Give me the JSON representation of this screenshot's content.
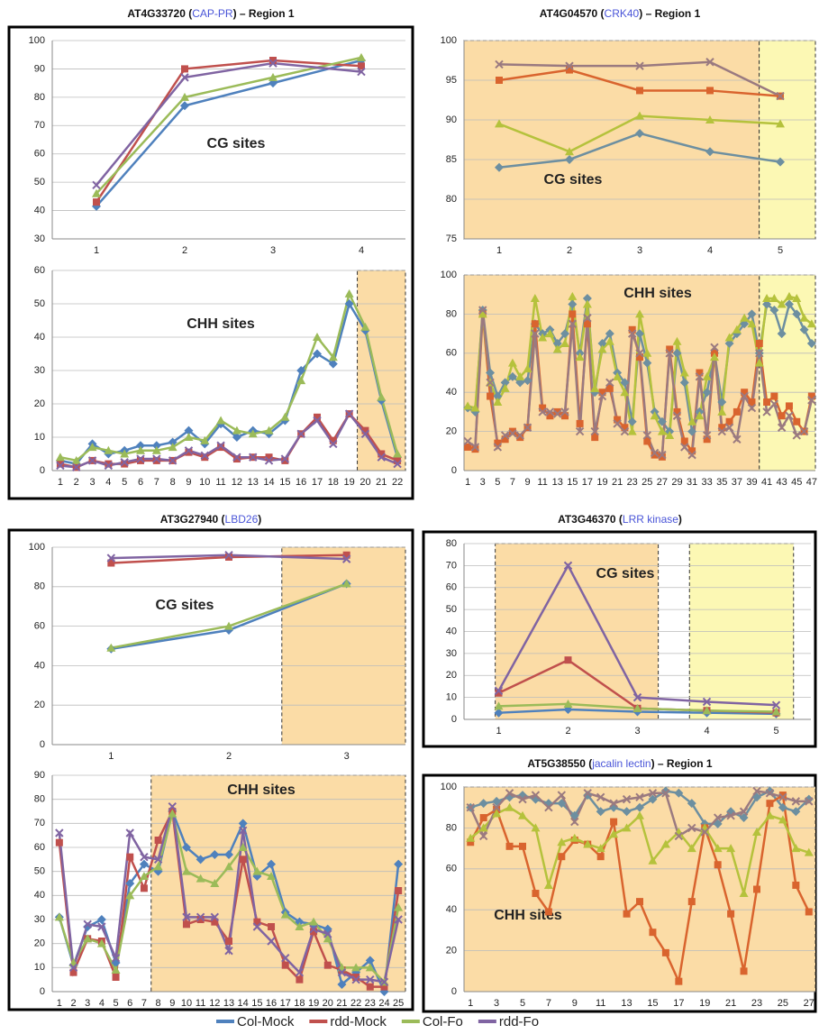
{
  "chart_data": [
    {
      "type": "line",
      "title": [
        "AT4G33720 (",
        "CAP-PR",
        ") – Region 1"
      ],
      "annotation": "CG sites",
      "categories": [
        1,
        2,
        3,
        4
      ],
      "ylim": [
        30,
        100
      ],
      "yticks": [
        30,
        40,
        50,
        60,
        70,
        80,
        90,
        100
      ],
      "grid": true,
      "series": [
        {
          "name": "Col-Mock",
          "color": "#4f81bd",
          "values": [
            41.5,
            77,
            85,
            93
          ]
        },
        {
          "name": "rdd-Mock",
          "color": "#c0504d",
          "values": [
            43,
            90,
            93,
            91
          ]
        },
        {
          "name": "Col-Fo",
          "color": "#9bbb59",
          "values": [
            46,
            80,
            87,
            94
          ]
        },
        {
          "name": "rdd-Fo",
          "color": "#8064a2",
          "values": [
            49,
            87,
            92,
            89
          ]
        }
      ]
    },
    {
      "type": "line",
      "annotation": "CHH sites",
      "categories": [
        1,
        2,
        3,
        4,
        5,
        6,
        7,
        8,
        9,
        10,
        11,
        12,
        13,
        14,
        15,
        16,
        17,
        18,
        19,
        20,
        21,
        22
      ],
      "ylim": [
        0,
        60
      ],
      "yticks": [
        0,
        10,
        20,
        30,
        40,
        50,
        60
      ],
      "grid": true,
      "shaded": [
        {
          "from": 19.5,
          "to": 22.5,
          "color": "#fbdca6"
        }
      ],
      "series": [
        {
          "name": "Col-Mock",
          "color": "#4f81bd",
          "values": [
            3,
            2,
            8,
            5,
            6,
            7.5,
            7.5,
            8.5,
            12,
            8,
            14,
            10,
            12,
            11,
            15,
            30,
            35,
            32,
            50,
            42,
            21,
            4
          ]
        },
        {
          "name": "rdd-Mock",
          "color": "#c0504d",
          "values": [
            2,
            1,
            3,
            2,
            2,
            3,
            3,
            3,
            5.5,
            4,
            7,
            3.5,
            4,
            4,
            3,
            11,
            16,
            9,
            17,
            12,
            5,
            3
          ]
        },
        {
          "name": "Col-Fo",
          "color": "#9bbb59",
          "values": [
            4,
            3,
            7,
            6,
            5,
            6,
            6,
            7,
            10,
            9,
            15,
            12,
            11,
            12,
            16,
            27,
            40,
            34,
            53,
            43,
            22,
            5
          ]
        },
        {
          "name": "rdd-Fo",
          "color": "#8064a2",
          "values": [
            1.5,
            1,
            3,
            1.5,
            2.5,
            3.5,
            3.5,
            3,
            6,
            4.5,
            7.5,
            4,
            4,
            3,
            3.5,
            11,
            15,
            8,
            17,
            11,
            4,
            2
          ]
        }
      ]
    },
    {
      "type": "line",
      "title": [
        "AT4G04570 (",
        "CRK40",
        ") – Region 1"
      ],
      "annotation": "CG sites",
      "categories": [
        1,
        2,
        3,
        4,
        5
      ],
      "ylim": [
        75,
        100
      ],
      "yticks": [
        75,
        80,
        85,
        90,
        95,
        100
      ],
      "grid": true,
      "shaded": [
        {
          "from": 0.5,
          "to": 4.7,
          "color": "#fbdca6"
        },
        {
          "from": 4.7,
          "to": 5.5,
          "color": "#fcf8b4"
        }
      ],
      "series": [
        {
          "name": "Col-Mock",
          "color": "#6d8fa0",
          "values": [
            84,
            85,
            88.3,
            86,
            84.7
          ]
        },
        {
          "name": "rdd-Mock",
          "color": "#d9642e",
          "values": [
            95,
            96.3,
            93.7,
            93.7,
            93
          ]
        },
        {
          "name": "Col-Fo",
          "color": "#b5c23c",
          "values": [
            89.5,
            86,
            90.5,
            90,
            89.5
          ]
        },
        {
          "name": "rdd-Fo",
          "color": "#9a7a80",
          "values": [
            97,
            96.8,
            96.8,
            97.3,
            93
          ]
        }
      ]
    },
    {
      "type": "line",
      "annotation": "CHH sites",
      "categories": [
        1,
        null,
        3,
        null,
        5,
        null,
        7,
        null,
        9,
        null,
        11,
        null,
        13,
        null,
        15,
        null,
        17,
        null,
        19,
        null,
        21,
        null,
        23,
        null,
        25,
        null,
        27,
        null,
        29,
        null,
        31,
        null,
        33,
        null,
        35,
        null,
        37,
        null,
        39,
        null,
        41,
        null,
        43,
        null,
        45,
        null,
        47
      ],
      "ylim": [
        0,
        100
      ],
      "yticks": [
        0,
        20,
        40,
        60,
        80,
        100
      ],
      "grid": true,
      "shaded": [
        {
          "from": 0.5,
          "to": 40,
          "color": "#fbdca6"
        },
        {
          "from": 40,
          "to": 47.5,
          "color": "#fcf8b4"
        }
      ],
      "series": [
        {
          "name": "Col-Mock",
          "color": "#6d8fa0",
          "values": [
            32,
            30,
            82,
            50,
            38,
            45,
            48,
            45,
            46,
            75,
            70,
            72,
            65,
            70,
            85,
            60,
            88,
            40,
            65,
            70,
            50,
            45,
            25,
            70,
            55,
            30,
            25,
            20,
            60,
            45,
            20,
            30,
            40,
            60,
            35,
            65,
            70,
            75,
            80,
            60,
            85,
            82,
            70,
            85,
            80,
            72,
            65
          ]
        },
        {
          "name": "rdd-Mock",
          "color": "#d9642e",
          "values": [
            12,
            11,
            80,
            38,
            14,
            16,
            20,
            17,
            22,
            75,
            32,
            28,
            30,
            28,
            80,
            24,
            75,
            17,
            40,
            42,
            26,
            22,
            72,
            58,
            15,
            8,
            7,
            62,
            30,
            15,
            10,
            50,
            16,
            60,
            22,
            25,
            30,
            40,
            35,
            65,
            35,
            38,
            28,
            33,
            25,
            20,
            38
          ]
        },
        {
          "name": "Col-Fo",
          "color": "#b5c23c",
          "values": [
            33,
            32,
            80,
            45,
            35,
            42,
            55,
            48,
            52,
            88,
            68,
            70,
            62,
            65,
            89,
            58,
            85,
            42,
            62,
            66,
            48,
            40,
            20,
            80,
            60,
            28,
            20,
            18,
            66,
            50,
            25,
            28,
            48,
            58,
            30,
            68,
            72,
            78,
            75,
            55,
            88,
            88,
            85,
            89,
            88,
            78,
            75
          ]
        },
        {
          "name": "rdd-Fo",
          "color": "#9a7a80",
          "values": [
            15,
            12,
            82,
            45,
            12,
            18,
            19,
            18,
            22,
            70,
            30,
            30,
            29,
            30,
            75,
            20,
            78,
            20,
            38,
            45,
            24,
            20,
            70,
            60,
            18,
            9,
            8,
            60,
            28,
            12,
            8,
            48,
            18,
            63,
            20,
            22,
            16,
            38,
            32,
            60,
            30,
            34,
            22,
            28,
            18,
            20,
            36
          ]
        }
      ]
    },
    {
      "type": "line",
      "title": [
        "AT3G27940 (",
        "LBD26",
        ")"
      ],
      "annotation": "CG sites",
      "categories": [
        1,
        2,
        3
      ],
      "ylim": [
        0,
        100
      ],
      "yticks": [
        0,
        20,
        40,
        60,
        80,
        100
      ],
      "grid": true,
      "shaded": [
        {
          "from": 2.45,
          "to": 3.5,
          "color": "#fbdca6"
        }
      ],
      "series": [
        {
          "name": "Col-Mock",
          "color": "#4f81bd",
          "values": [
            48.5,
            58,
            81.5
          ]
        },
        {
          "name": "rdd-Mock",
          "color": "#c0504d",
          "values": [
            92,
            95,
            96
          ]
        },
        {
          "name": "Col-Fo",
          "color": "#9bbb59",
          "values": [
            49,
            60,
            81.5
          ]
        },
        {
          "name": "rdd-Fo",
          "color": "#8064a2",
          "values": [
            94.5,
            96,
            94
          ]
        }
      ]
    },
    {
      "type": "line",
      "annotation": "CHH sites",
      "categories": [
        1,
        2,
        3,
        4,
        5,
        6,
        7,
        8,
        9,
        10,
        11,
        12,
        13,
        14,
        15,
        16,
        17,
        18,
        19,
        20,
        21,
        22,
        23,
        24,
        25
      ],
      "ylim": [
        0,
        90
      ],
      "yticks": [
        0,
        10,
        20,
        30,
        40,
        50,
        60,
        70,
        80,
        90
      ],
      "grid": true,
      "shaded": [
        {
          "from": 7.5,
          "to": 25.5,
          "color": "#fbdca6"
        }
      ],
      "series": [
        {
          "name": "Col-Mock",
          "color": "#4f81bd",
          "values": [
            31,
            11,
            27,
            30,
            12,
            45,
            53,
            50,
            75,
            60,
            55,
            57,
            57,
            70,
            48,
            53,
            33,
            29,
            28,
            26,
            3,
            8,
            13,
            0,
            53
          ]
        },
        {
          "name": "rdd-Mock",
          "color": "#c0504d",
          "values": [
            62,
            8,
            22,
            21,
            6,
            56,
            43,
            63,
            75,
            28,
            30,
            29,
            21,
            55,
            29,
            27,
            11,
            5,
            25,
            11,
            9,
            6,
            2,
            2,
            42
          ]
        },
        {
          "name": "Col-Fo",
          "color": "#9bbb59",
          "values": [
            31,
            12,
            22,
            20,
            9,
            40,
            48,
            52,
            74,
            50,
            47,
            45,
            52,
            60,
            50,
            48,
            32,
            27,
            29,
            22,
            10,
            10,
            10,
            4,
            35
          ]
        },
        {
          "name": "rdd-Fo",
          "color": "#8064a2",
          "values": [
            66,
            10,
            28,
            27,
            14,
            66,
            56,
            55,
            77,
            31,
            31,
            31,
            17,
            67,
            27,
            21,
            14,
            8,
            26,
            24,
            8,
            5,
            5,
            4,
            30
          ]
        }
      ]
    },
    {
      "type": "line",
      "title": [
        "AT3G46370 (",
        "LRR kinase",
        ")"
      ],
      "annotation": "CG sites",
      "categories": [
        1,
        2,
        3,
        4,
        5
      ],
      "ylim": [
        0,
        80
      ],
      "yticks": [
        0,
        10,
        20,
        30,
        40,
        50,
        60,
        70,
        80
      ],
      "grid": true,
      "shaded": [
        {
          "from": 0.95,
          "to": 3.3,
          "color": "#fbdca6"
        },
        {
          "from": 3.75,
          "to": 5.25,
          "color": "#fcf8b4"
        }
      ],
      "series": [
        {
          "name": "Col-Mock",
          "color": "#4f81bd",
          "values": [
            3,
            4.5,
            3.5,
            3,
            2.5
          ]
        },
        {
          "name": "rdd-Mock",
          "color": "#c0504d",
          "values": [
            12,
            27,
            5,
            4,
            3
          ]
        },
        {
          "name": "Col-Fo",
          "color": "#9bbb59",
          "values": [
            6,
            7,
            5,
            4,
            3.5
          ]
        },
        {
          "name": "rdd-Fo",
          "color": "#8064a2",
          "values": [
            13,
            70,
            10,
            8,
            6.5
          ]
        }
      ]
    },
    {
      "type": "line",
      "title": [
        "AT5G38550 (",
        "jacalin lectin",
        ") – Region 1"
      ],
      "annotation": "CHH sites",
      "categories": [
        1,
        null,
        3,
        null,
        5,
        null,
        7,
        null,
        9,
        null,
        11,
        null,
        13,
        null,
        15,
        null,
        17,
        null,
        19,
        null,
        21,
        null,
        23,
        null,
        25,
        null,
        27
      ],
      "ylim": [
        0,
        100
      ],
      "yticks": [
        0,
        20,
        40,
        60,
        80,
        100
      ],
      "grid": true,
      "shaded": [
        {
          "from": 0.5,
          "to": 27.5,
          "color": "#fbdca6"
        }
      ],
      "series": [
        {
          "name": "Col-Mock",
          "color": "#6d8fa0",
          "values": [
            90,
            92,
            93,
            95,
            96,
            94,
            92,
            92,
            86,
            96,
            88,
            90,
            88,
            90,
            94,
            98,
            97,
            92,
            82,
            82,
            88,
            85,
            95,
            98,
            90,
            88,
            94
          ]
        },
        {
          "name": "rdd-Mock",
          "color": "#d9642e",
          "values": [
            73,
            85,
            89,
            71,
            71,
            48,
            39,
            66,
            74,
            72,
            66,
            83,
            38,
            44,
            29,
            19,
            5,
            44,
            80,
            62,
            38,
            10,
            50,
            92,
            96,
            52,
            39
          ]
        },
        {
          "name": "Col-Fo",
          "color": "#b5c23c",
          "values": [
            75,
            80,
            87,
            90,
            86,
            80,
            52,
            73,
            75,
            72,
            70,
            77,
            80,
            86,
            64,
            72,
            78,
            70,
            80,
            70,
            70,
            48,
            78,
            86,
            84,
            70,
            68
          ]
        },
        {
          "name": "rdd-Fo",
          "color": "#9a7a80",
          "values": [
            90,
            76,
            90,
            97,
            94,
            96,
            90,
            96,
            83,
            97,
            95,
            92,
            94,
            95,
            97,
            97,
            76,
            80,
            78,
            85,
            86,
            88,
            98,
            97,
            95,
            93,
            93
          ]
        }
      ]
    }
  ]
}
